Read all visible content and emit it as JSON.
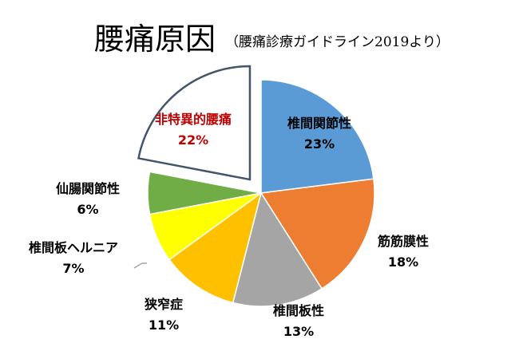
{
  "chart_data": {
    "type": "pie",
    "title": "腰痛原因",
    "subtitle": "（腰痛診療ガイドライン2019より）",
    "slices": [
      {
        "label": "椎間関節性",
        "value": 23,
        "value_text": "23%",
        "color": "#5b9bd5"
      },
      {
        "label": "筋筋膜性",
        "value": 18,
        "value_text": "18%",
        "color": "#ed7d31"
      },
      {
        "label": "椎間板性",
        "value": 13,
        "value_text": "13%",
        "color": "#a5a5a5"
      },
      {
        "label": "狭窄症",
        "value": 11,
        "value_text": "11%",
        "color": "#ffc000"
      },
      {
        "label": "椎間板ヘルニア",
        "value": 7,
        "value_text": "7%",
        "color": "#ffff00"
      },
      {
        "label": "仙腸関節性",
        "value": 6,
        "value_text": "6%",
        "color": "#70ad47"
      },
      {
        "label": "非特異的腰痛",
        "value": 22,
        "value_text": "22%",
        "color": "#ffffff",
        "exploded": true,
        "label_color": "#c00000"
      }
    ]
  }
}
